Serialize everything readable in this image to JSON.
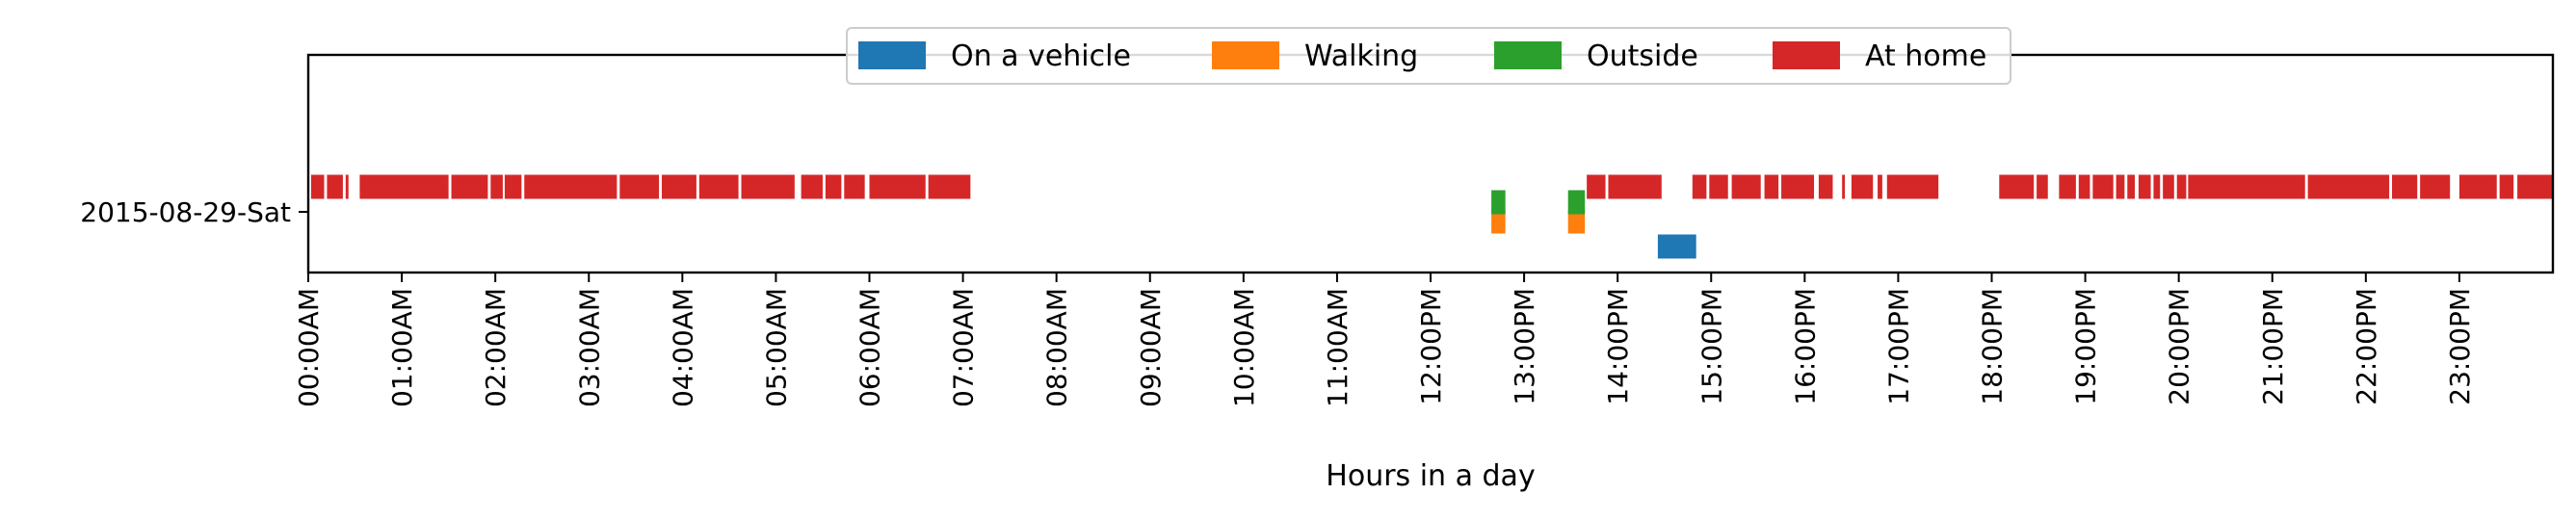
{
  "chart_data": {
    "type": "timeline",
    "xlabel": "Hours in a day",
    "ylabel": "",
    "xlim": [
      0,
      24
    ],
    "x_ticks": [
      "00:00AM",
      "01:00AM",
      "02:00AM",
      "03:00AM",
      "04:00AM",
      "05:00AM",
      "06:00AM",
      "07:00AM",
      "08:00AM",
      "09:00AM",
      "10:00AM",
      "11:00AM",
      "12:00PM",
      "13:00PM",
      "14:00PM",
      "15:00PM",
      "16:00PM",
      "17:00PM",
      "18:00PM",
      "19:00PM",
      "20:00PM",
      "21:00PM",
      "22:00PM",
      "23:00PM"
    ],
    "categories": [
      "2015-08-29-Sat"
    ],
    "legend": {
      "placement": "top-center"
    },
    "grid": false,
    "series": [
      {
        "name": "On a vehicle",
        "color": "#1f77b4",
        "intervals": [
          [
            14.43,
            14.84
          ]
        ]
      },
      {
        "name": "Walking",
        "color": "#ff7f0e",
        "intervals": [
          [
            12.65,
            12.8
          ],
          [
            13.47,
            13.65
          ]
        ]
      },
      {
        "name": "Outside",
        "color": "#2ca02c",
        "intervals": [
          [
            12.65,
            12.8
          ],
          [
            13.47,
            13.65
          ]
        ]
      },
      {
        "name": "At home",
        "color": "#d62728",
        "intervals": [
          [
            0.03,
            0.17
          ],
          [
            0.2,
            0.37
          ],
          [
            0.4,
            0.43
          ],
          [
            0.55,
            1.5
          ],
          [
            1.53,
            1.92
          ],
          [
            1.95,
            2.08
          ],
          [
            2.1,
            2.28
          ],
          [
            2.31,
            3.3
          ],
          [
            3.33,
            3.75
          ],
          [
            3.78,
            4.15
          ],
          [
            4.18,
            4.6
          ],
          [
            4.63,
            5.2
          ],
          [
            5.27,
            5.5
          ],
          [
            5.53,
            5.7
          ],
          [
            5.73,
            5.95
          ],
          [
            6.0,
            6.6
          ],
          [
            6.63,
            7.08
          ],
          [
            13.67,
            13.87
          ],
          [
            13.9,
            14.47
          ],
          [
            14.8,
            14.95
          ],
          [
            14.98,
            15.18
          ],
          [
            15.22,
            15.53
          ],
          [
            15.57,
            15.72
          ],
          [
            15.75,
            16.1
          ],
          [
            16.15,
            16.3
          ],
          [
            16.4,
            16.43
          ],
          [
            16.5,
            16.73
          ],
          [
            16.78,
            16.83
          ],
          [
            16.88,
            17.43
          ],
          [
            18.08,
            18.45
          ],
          [
            18.48,
            18.6
          ],
          [
            18.72,
            18.9
          ],
          [
            18.93,
            19.05
          ],
          [
            19.08,
            19.3
          ],
          [
            19.33,
            19.42
          ],
          [
            19.45,
            19.53
          ],
          [
            19.57,
            19.7
          ],
          [
            19.73,
            19.8
          ],
          [
            19.83,
            19.95
          ],
          [
            19.98,
            20.08
          ],
          [
            20.1,
            21.35
          ],
          [
            21.38,
            22.25
          ],
          [
            22.28,
            22.55
          ],
          [
            22.58,
            22.9
          ],
          [
            23.0,
            23.4
          ],
          [
            23.43,
            23.58
          ],
          [
            23.62,
            24.0
          ]
        ]
      }
    ]
  }
}
